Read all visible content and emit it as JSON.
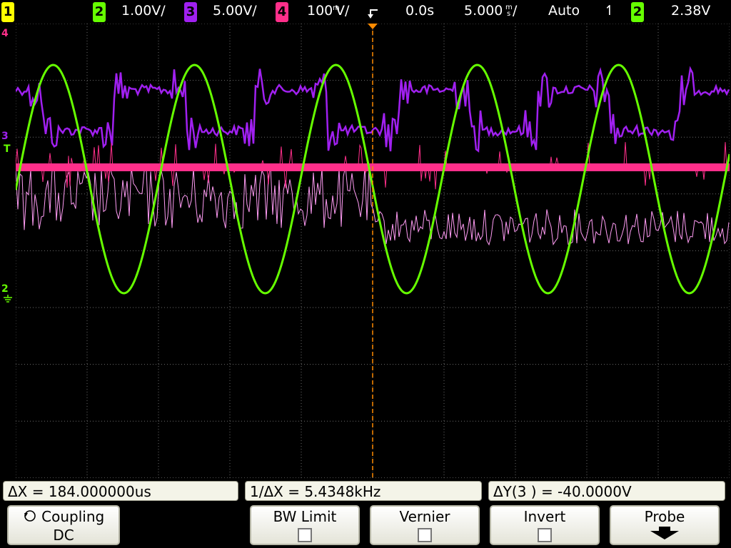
{
  "topbar": {
    "ch1_num": "1",
    "ch2_num": "2",
    "ch2_scale": "1.00V/",
    "ch3_num": "3",
    "ch3_scale": "5.00V/",
    "ch4_num": "4",
    "ch4_scale_num": "100",
    "ch4_scale_unit": "V/",
    "ch4_scale_prefix": "m",
    "time_delay": "0.0s",
    "time_scale_num": "5.000",
    "time_scale_prefix": "m",
    "time_scale_unit": "s",
    "time_scale_suffix": "/",
    "trigger_mode": "Auto",
    "trigger_slope_glyph": "↿",
    "trigger_source": "2",
    "trigger_level": "2.38V"
  },
  "markers": {
    "ch4": "4",
    "ch3": "3",
    "trigger": "T",
    "ch2": "2"
  },
  "measurements": {
    "delta_x": "ΔX = 184.000000us",
    "inv_delta_x": "1/ΔX = 5.4348kHz",
    "delta_y": "ΔY(3 ) = -40.0000V"
  },
  "softkeys": {
    "coupling_label": "Coupling",
    "coupling_value": "DC",
    "bw_limit": "BW Limit",
    "vernier": "Vernier",
    "invert": "Invert",
    "probe": "Probe"
  },
  "colors": {
    "ch1": "#ffff00",
    "ch2": "#66ff00",
    "ch3": "#a020f0",
    "ch4": "#ff2f8a",
    "ch3_trace_light": "#ff9cf4",
    "grid": "#6b6b6b",
    "trigger_cursor": "#ff8a00"
  },
  "icons": {
    "coupling": "rotate-knob-icon",
    "probe": "down-arrow-icon",
    "trigger_position": "trigger-position-icon",
    "ground": "ground-icon"
  }
}
